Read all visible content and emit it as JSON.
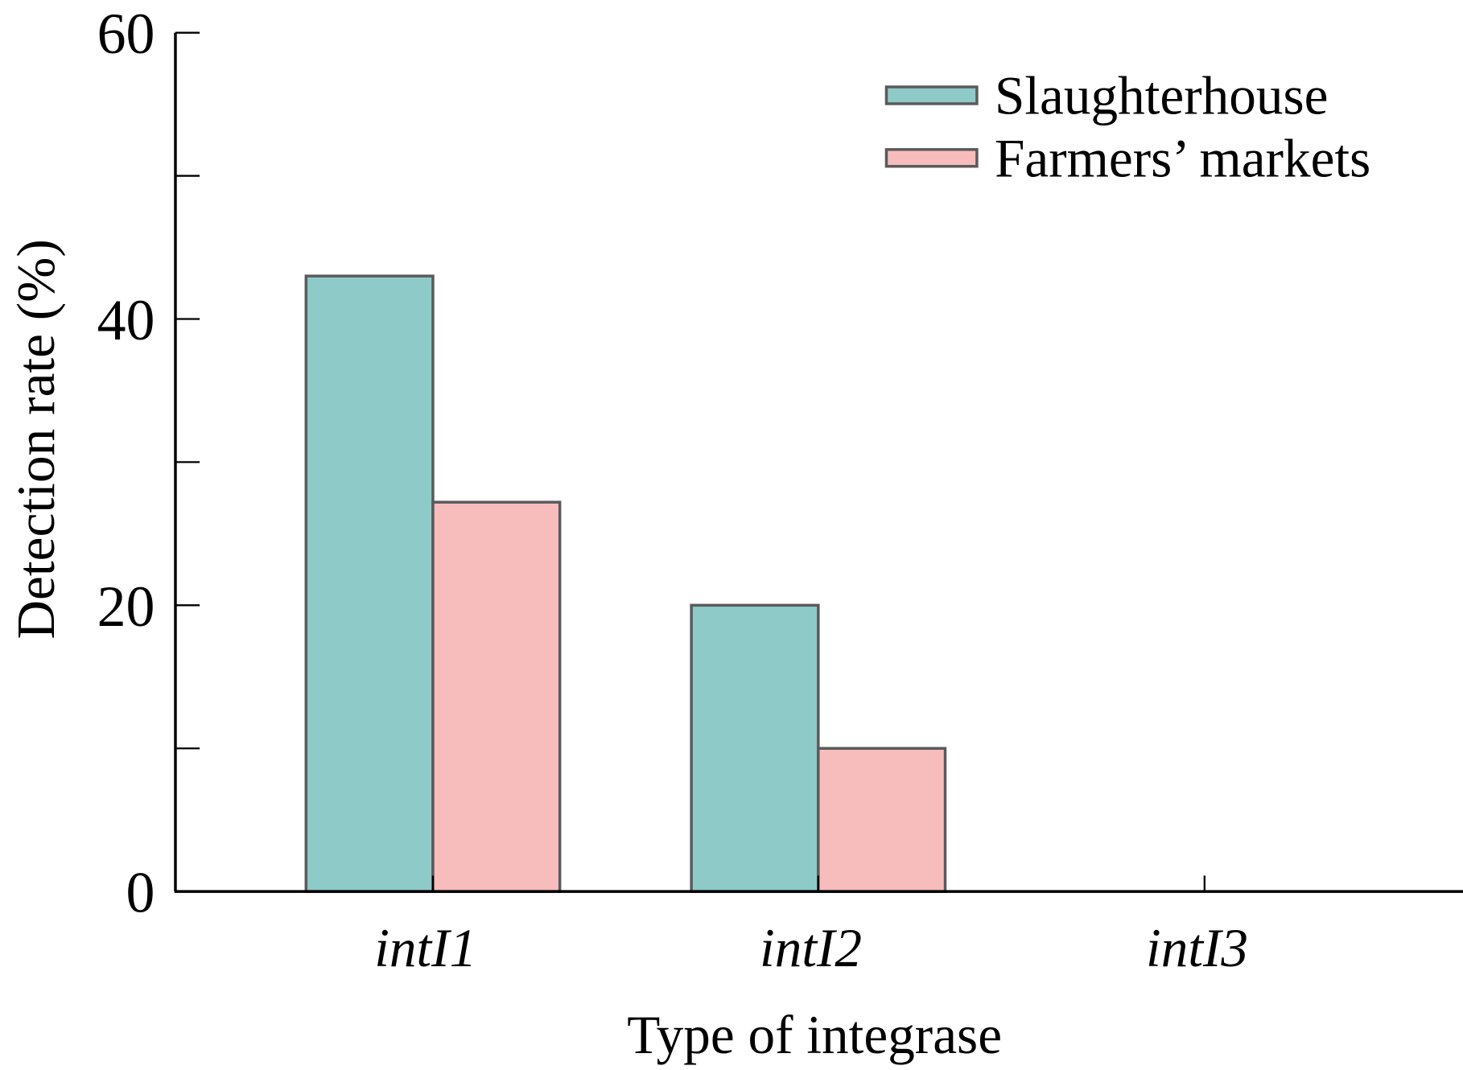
{
  "chart_data": {
    "type": "bar",
    "title": "",
    "xlabel": "Type of integrase",
    "ylabel": "Detection rate (%)",
    "categories": [
      "intI1",
      "intI2",
      "intI3"
    ],
    "series": [
      {
        "name": "Slaughterhouse",
        "color": "#8ecac8",
        "values": [
          43.0,
          20.0,
          0
        ]
      },
      {
        "name": "Farmers’ markets",
        "color": "#f7bcbc",
        "values": [
          27.2,
          10.0,
          0
        ]
      }
    ],
    "ylim": [
      0,
      60
    ],
    "yticks": [
      0,
      20,
      40,
      60
    ],
    "yminor_step": 10,
    "grid": false,
    "legend_position": "top-right"
  }
}
